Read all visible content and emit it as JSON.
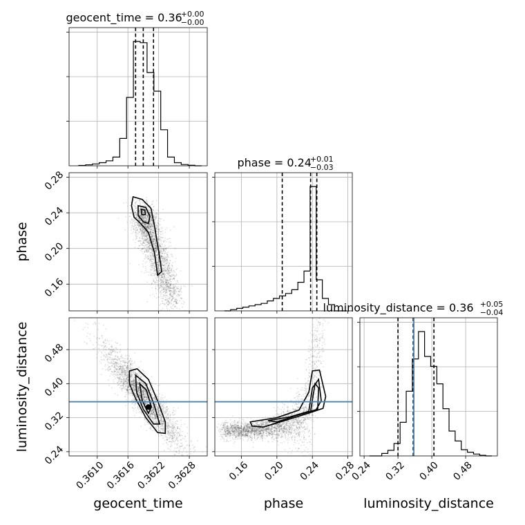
{
  "chart_data": {
    "type": "scatter",
    "kind": "corner-plot",
    "parameters": [
      {
        "name": "geocent_time",
        "range": [
          0.36045,
          0.36315
        ],
        "ticks": [
          0.361,
          0.3616,
          0.3622,
          0.3628
        ],
        "tick_labels": [
          "0.3610",
          "0.3616",
          "0.3622",
          "0.3628"
        ],
        "median": 0.3619,
        "quantiles": [
          0.36175,
          0.3619,
          0.3621
        ]
      },
      {
        "name": "phase",
        "range": [
          0.13,
          0.285
        ],
        "ticks": [
          0.16,
          0.2,
          0.24,
          0.28
        ],
        "tick_labels": [
          "0.16",
          "0.20",
          "0.24",
          "0.28"
        ],
        "median": 0.24,
        "quantiles": [
          0.206,
          0.238,
          0.245
        ]
      },
      {
        "name": "luminosity_distance",
        "range": [
          0.23,
          0.555
        ],
        "ticks": [
          0.24,
          0.32,
          0.4,
          0.48
        ],
        "tick_labels": [
          "0.24",
          "0.32",
          "0.40",
          "0.48"
        ],
        "truth": 0.3575,
        "median": 0.36,
        "quantiles": [
          0.32,
          0.356,
          0.405
        ]
      }
    ],
    "titles": [
      {
        "main": "geocent_time = 0.36",
        "plus": "+0.00",
        "minus": "−0.00"
      },
      {
        "main": "phase = 0.24",
        "plus": "+0.01",
        "minus": "−0.03"
      },
      {
        "main": "luminosity_distance = 0.36",
        "plus": "+0.05",
        "minus": "−0.04"
      }
    ],
    "histograms": [
      [
        0.003,
        0.008,
        0.015,
        0.025,
        0.04,
        0.07,
        0.22,
        0.55,
        1.0,
        0.99,
        0.75,
        0.6,
        0.29,
        0.07,
        0.025,
        0.01,
        0.004,
        0.0
      ],
      [
        0.0,
        0.01,
        0.02,
        0.03,
        0.04,
        0.05,
        0.06,
        0.08,
        0.1,
        0.12,
        0.14,
        0.17,
        0.23,
        0.32,
        1.0,
        0.25,
        0.1,
        0.05,
        0.0,
        0.0
      ],
      [
        0.0,
        0.0,
        0.02,
        0.045,
        0.1,
        0.27,
        0.52,
        0.78,
        1.0,
        0.8,
        0.72,
        0.58,
        0.38,
        0.2,
        0.12,
        0.05,
        0.03,
        0.015,
        0.005,
        0.0
      ]
    ],
    "grid": true,
    "truth_color": "#4682b4",
    "points_color": "#000000"
  }
}
